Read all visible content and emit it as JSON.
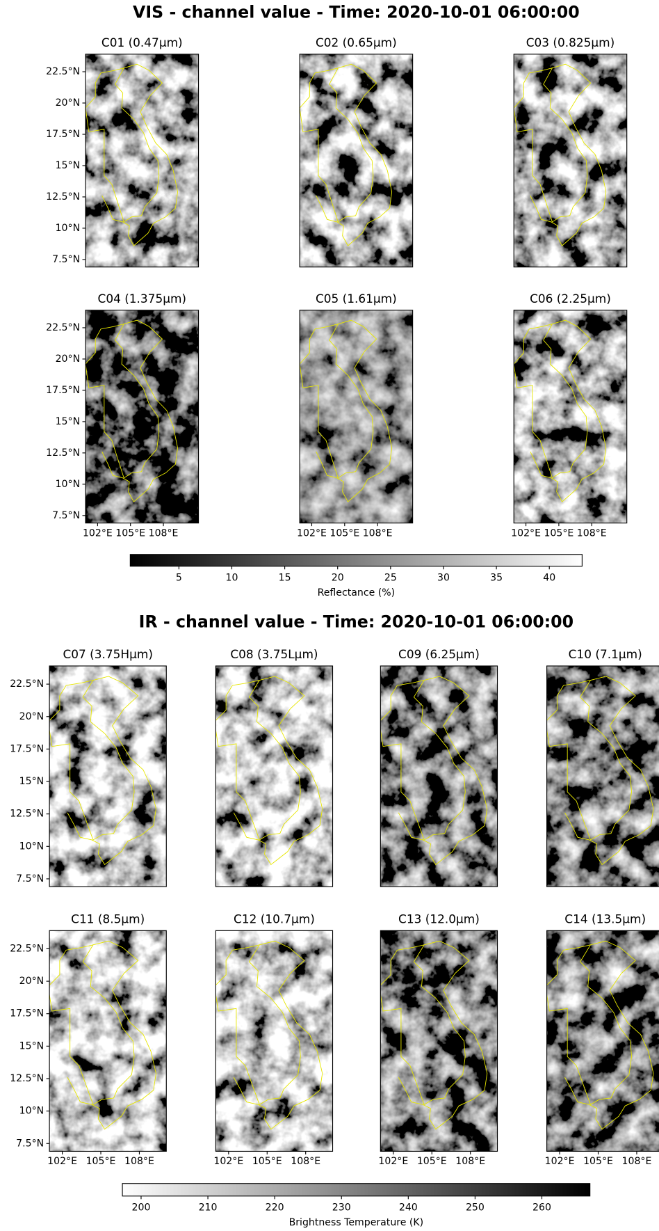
{
  "chart_data": [
    {
      "type": "image_grid",
      "title": "VIS - channel value - Time: 2020-10-01 06:00:00",
      "columns": 3,
      "panels": [
        "C01 (0.47µm)",
        "C02 (0.65µm)",
        "C03 (0.825µm)",
        "C04 (1.375µm)",
        "C05 (1.61µm)",
        "C06 (2.25µm)"
      ],
      "xlim": [
        100.9,
        111.2
      ],
      "ylim": [
        6.9,
        23.9
      ],
      "xticks": [
        {
          "value": 102,
          "label": "102°E"
        },
        {
          "value": 105,
          "label": "105°E"
        },
        {
          "value": 108,
          "label": "108°E"
        }
      ],
      "yticks": [
        {
          "value": 7.5,
          "label": "7.5°N"
        },
        {
          "value": 10,
          "label": "10°N"
        },
        {
          "value": 12.5,
          "label": "12.5°N"
        },
        {
          "value": 15,
          "label": "15°N"
        },
        {
          "value": 17.5,
          "label": "17.5°N"
        },
        {
          "value": 20,
          "label": "20°N"
        },
        {
          "value": 22.5,
          "label": "22.5°N"
        }
      ],
      "colorbar": {
        "label": "Reflectance (%)",
        "lim": [
          0.4,
          43.1
        ],
        "ticks": [
          5,
          10,
          15,
          20,
          25,
          30,
          35,
          40
        ],
        "cmap": "gray"
      }
    },
    {
      "type": "image_grid",
      "title": "IR - channel value - Time: 2020-10-01 06:00:00",
      "columns": 4,
      "panels": [
        "C07 (3.75Hµm)",
        "C08 (3.75Lµm)",
        "C09 (6.25µm)",
        "C10 (7.1µm)",
        "C11 (8.5µm)",
        "C12 (10.7µm)",
        "C13 (12.0µm)",
        "C14 (13.5µm)"
      ],
      "xlim": [
        101,
        110.1
      ],
      "ylim": [
        6.9,
        23.9
      ],
      "xticks": [
        {
          "value": 102,
          "label": "102°E"
        },
        {
          "value": 105,
          "label": "105°E"
        },
        {
          "value": 108,
          "label": "108°E"
        }
      ],
      "yticks": [
        {
          "value": 7.5,
          "label": "7.5°N"
        },
        {
          "value": 10,
          "label": "10°N"
        },
        {
          "value": 12.5,
          "label": "12.5°N"
        },
        {
          "value": 15,
          "label": "15°N"
        },
        {
          "value": 17.5,
          "label": "17.5°N"
        },
        {
          "value": 20,
          "label": "20°N"
        },
        {
          "value": 22.5,
          "label": "22.5°N"
        }
      ],
      "colorbar": {
        "label": "Brightness Temperature (K)",
        "lim": [
          197.2,
          267.2
        ],
        "ticks": [
          200,
          210,
          220,
          230,
          240,
          250,
          260
        ],
        "cmap": "gray_r"
      }
    }
  ]
}
